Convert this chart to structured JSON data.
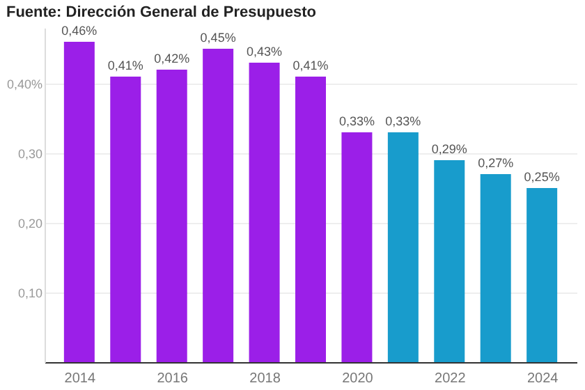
{
  "chart_data": {
    "type": "bar",
    "title": "Fuente: Dirección General de Presupuesto",
    "categories": [
      "2014",
      null,
      "2016",
      null,
      "2018",
      null,
      "2020",
      null,
      "2022",
      null,
      "2024"
    ],
    "values": [
      0.46,
      0.41,
      0.42,
      0.45,
      0.43,
      0.41,
      0.33,
      0.33,
      0.29,
      0.27,
      0.25
    ],
    "value_labels": [
      "0,46%",
      "0,41%",
      "0,42%",
      "0,45%",
      "0,43%",
      "0,41%",
      "0,33%",
      "0,33%",
      "0,29%",
      "0,27%",
      "0,25%"
    ],
    "colors": [
      "#9b1fe8",
      "#9b1fe8",
      "#9b1fe8",
      "#9b1fe8",
      "#9b1fe8",
      "#9b1fe8",
      "#9b1fe8",
      "#189ccc",
      "#189ccc",
      "#189ccc",
      "#189ccc"
    ],
    "ylim": [
      0,
      0.48
    ],
    "yticks": [
      {
        "value": 0.1,
        "label": "0,10"
      },
      {
        "value": 0.2,
        "label": "0,20"
      },
      {
        "value": 0.3,
        "label": "0,30"
      },
      {
        "value": 0.4,
        "label": "0,40%"
      }
    ],
    "grid": "y"
  }
}
